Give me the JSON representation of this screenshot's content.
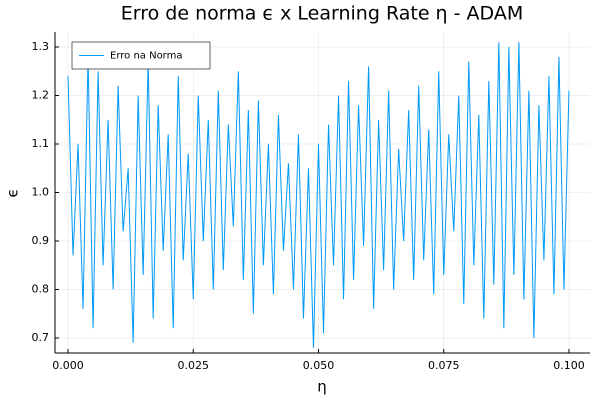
{
  "chart_data": {
    "type": "line",
    "title": "Erro de norma ϵ x Learning Rate η - ADAM",
    "x_label": "η",
    "y_label": "ϵ",
    "x": [
      0,
      0.001,
      0.002,
      0.003,
      0.004,
      0.005,
      0.006,
      0.007,
      0.008,
      0.009,
      0.01,
      0.011,
      0.012,
      0.013,
      0.014,
      0.015,
      0.016,
      0.017,
      0.018,
      0.019,
      0.02,
      0.021,
      0.022,
      0.023,
      0.024,
      0.025,
      0.026,
      0.027,
      0.028,
      0.029,
      0.03,
      0.031,
      0.032,
      0.033,
      0.034,
      0.035,
      0.036,
      0.037,
      0.038,
      0.039,
      0.04,
      0.041,
      0.042,
      0.043,
      0.044,
      0.045,
      0.046,
      0.047,
      0.048,
      0.049,
      0.05,
      0.051,
      0.052,
      0.053,
      0.054,
      0.055,
      0.056,
      0.057,
      0.058,
      0.059,
      0.06,
      0.061,
      0.062,
      0.063,
      0.064,
      0.065,
      0.066,
      0.067,
      0.068,
      0.069,
      0.07,
      0.071,
      0.072,
      0.073,
      0.074,
      0.075,
      0.076,
      0.077,
      0.078,
      0.079,
      0.08,
      0.081,
      0.082,
      0.083,
      0.084,
      0.085,
      0.086,
      0.087,
      0.088,
      0.089,
      0.09,
      0.091,
      0.092,
      0.093,
      0.094,
      0.095,
      0.096,
      0.097,
      0.098,
      0.099,
      0.1
    ],
    "series": [
      {
        "name": "Erro na Norma",
        "color": "#009af9",
        "values": [
          1.24,
          0.87,
          1.1,
          0.76,
          1.28,
          0.72,
          1.25,
          0.85,
          1.15,
          0.8,
          1.22,
          0.92,
          1.05,
          0.69,
          1.2,
          0.83,
          1.27,
          0.74,
          1.18,
          0.88,
          1.12,
          0.72,
          1.24,
          0.86,
          1.08,
          0.78,
          1.2,
          0.9,
          1.15,
          0.8,
          1.21,
          0.84,
          1.14,
          0.93,
          1.25,
          0.82,
          1.17,
          0.75,
          1.19,
          0.85,
          1.1,
          0.79,
          1.16,
          0.88,
          1.06,
          0.8,
          1.12,
          0.74,
          1.05,
          0.68,
          1.1,
          0.71,
          1.14,
          0.85,
          1.2,
          0.78,
          1.23,
          0.82,
          1.18,
          0.89,
          1.26,
          0.76,
          1.15,
          0.84,
          1.21,
          0.8,
          1.09,
          0.9,
          1.17,
          0.82,
          1.22,
          0.86,
          1.13,
          0.79,
          1.25,
          0.83,
          1.12,
          0.92,
          1.2,
          0.77,
          1.27,
          0.85,
          1.16,
          0.74,
          1.23,
          0.81,
          1.31,
          0.72,
          1.3,
          0.83,
          1.31,
          0.78,
          1.21,
          0.7,
          1.18,
          0.86,
          1.24,
          0.79,
          1.28,
          0.8,
          1.21
        ]
      }
    ],
    "xlim": [
      -0.0026,
      0.1042
    ],
    "xticks": [
      {
        "value": 0,
        "label": "0.000"
      },
      0.025,
      {
        "value": 0.05,
        "label": "0.050"
      },
      0.075,
      {
        "value": 0.1,
        "label": "0.100"
      }
    ],
    "ylim": [
      0.669,
      1.331
    ],
    "yticks": [
      0.7,
      0.8,
      0.9,
      {
        "value": 1,
        "label": "1.0"
      },
      1.1,
      1.2,
      1.3
    ],
    "grid": true,
    "legend": "top-left"
  }
}
